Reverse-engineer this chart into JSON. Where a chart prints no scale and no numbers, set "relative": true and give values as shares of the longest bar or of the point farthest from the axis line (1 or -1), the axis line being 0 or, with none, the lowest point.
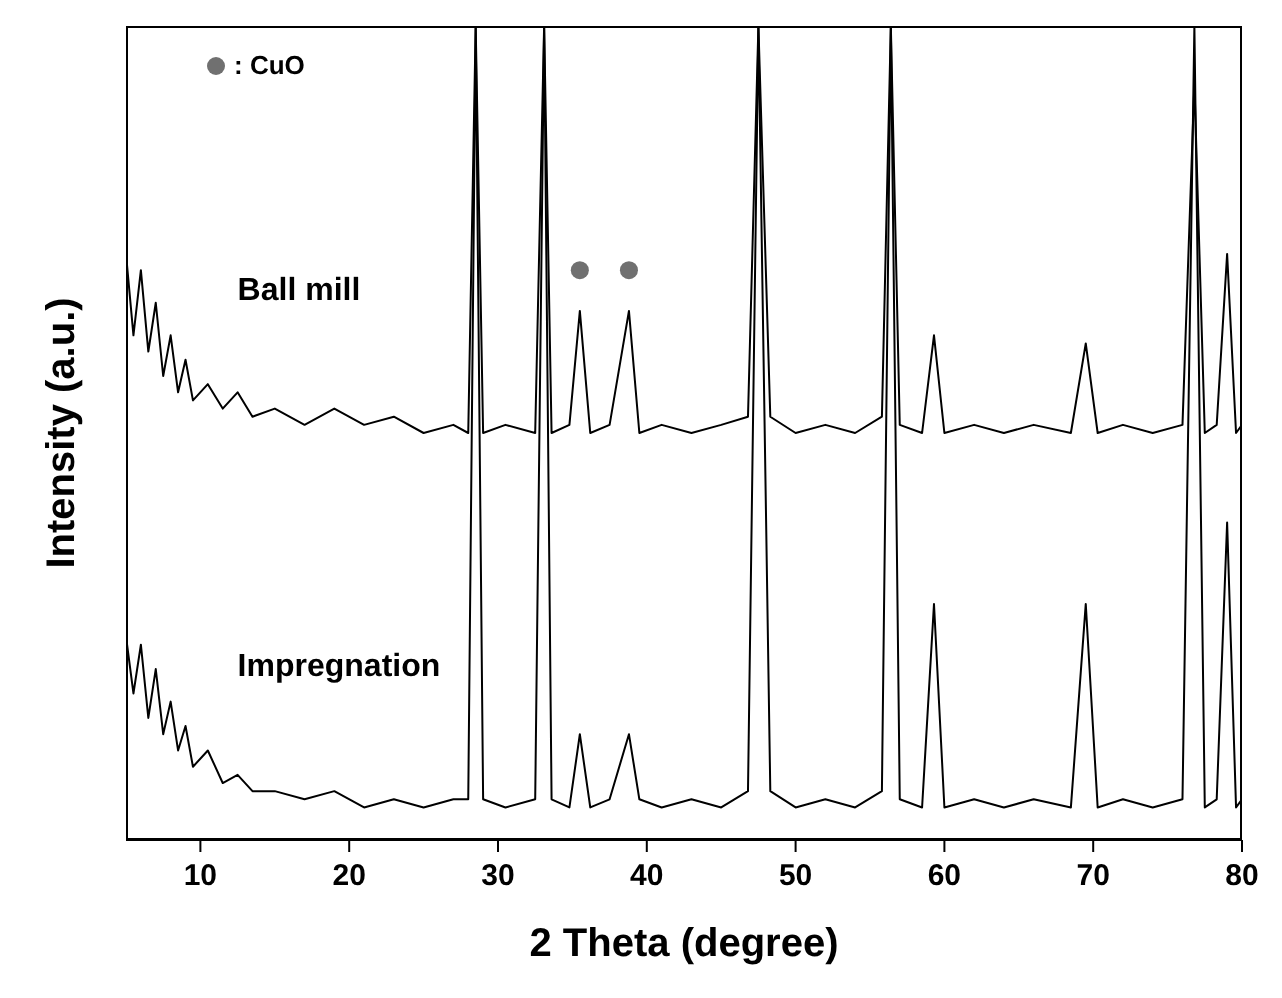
{
  "chart_data": {
    "type": "line",
    "relative": true,
    "xlabel": "2 Theta (degree)",
    "ylabel": "Intensity (a.u.)",
    "xlim": [
      5,
      80
    ],
    "xticks": [
      10,
      20,
      30,
      40,
      50,
      60,
      70,
      80
    ],
    "legend": "top left",
    "line_style": "solid",
    "series": [
      {
        "name": "Ball mill",
        "color": "#000000",
        "marker": "none",
        "x": [
          5.0,
          5.5,
          6.0,
          6.5,
          7.0,
          7.5,
          8.0,
          8.5,
          9.0,
          9.5,
          10.5,
          11.5,
          12.5,
          13.5,
          15,
          17,
          19,
          21,
          23,
          25,
          27,
          28.0,
          28.5,
          29.0,
          30.5,
          32.5,
          33.1,
          33.6,
          34.8,
          35.5,
          36.2,
          37.5,
          38.8,
          39.5,
          41,
          43,
          45,
          46.8,
          47.5,
          48.3,
          50,
          52,
          54,
          55.8,
          56.4,
          57,
          58.5,
          59.3,
          60,
          62,
          64,
          66,
          68.5,
          69.5,
          70.3,
          72,
          74,
          76,
          76.8,
          77.5,
          78.3,
          79,
          79.6,
          80
        ],
        "values": [
          0.72,
          0.62,
          0.7,
          0.6,
          0.66,
          0.57,
          0.62,
          0.55,
          0.59,
          0.54,
          0.56,
          0.53,
          0.55,
          0.52,
          0.53,
          0.51,
          0.53,
          0.51,
          0.52,
          0.5,
          0.51,
          0.5,
          1,
          0.5,
          0.51,
          0.5,
          1,
          0.5,
          0.51,
          0.65,
          0.5,
          0.51,
          0.65,
          0.5,
          0.51,
          0.5,
          0.51,
          0.52,
          1,
          0.52,
          0.5,
          0.51,
          0.5,
          0.52,
          1,
          0.51,
          0.5,
          0.62,
          0.5,
          0.51,
          0.5,
          0.51,
          0.5,
          0.61,
          0.5,
          0.51,
          0.5,
          0.51,
          0.93,
          0.5,
          0.51,
          0.72,
          0.5,
          0.51
        ]
      },
      {
        "name": "Impregnation",
        "color": "#000000",
        "marker": "none",
        "x": [
          5.0,
          5.5,
          6.0,
          6.5,
          7.0,
          7.5,
          8.0,
          8.5,
          9.0,
          9.5,
          10.5,
          11.5,
          12.5,
          13.5,
          15,
          17,
          19,
          21,
          23,
          25,
          27,
          28.0,
          28.5,
          29.0,
          30.5,
          32.5,
          33.1,
          33.6,
          34.8,
          35.5,
          36.2,
          37.5,
          38.8,
          39.5,
          41,
          43,
          45,
          46.8,
          47.5,
          48.3,
          50,
          52,
          54,
          55.8,
          56.4,
          57,
          58.5,
          59.3,
          60,
          62,
          64,
          66,
          68.5,
          69.5,
          70.3,
          72,
          74,
          76,
          76.8,
          77.5,
          78.3,
          79,
          79.6,
          80
        ],
        "values": [
          0.25,
          0.18,
          0.24,
          0.15,
          0.21,
          0.13,
          0.17,
          0.11,
          0.14,
          0.09,
          0.11,
          0.07,
          0.08,
          0.06,
          0.06,
          0.05,
          0.06,
          0.04,
          0.05,
          0.04,
          0.05,
          0.05,
          1,
          0.05,
          0.04,
          0.05,
          1,
          0.05,
          0.04,
          0.13,
          0.04,
          0.05,
          0.13,
          0.05,
          0.04,
          0.05,
          0.04,
          0.06,
          1,
          0.06,
          0.04,
          0.05,
          0.04,
          0.06,
          1,
          0.05,
          0.04,
          0.29,
          0.04,
          0.05,
          0.04,
          0.05,
          0.04,
          0.29,
          0.04,
          0.05,
          0.04,
          0.05,
          1,
          0.04,
          0.05,
          0.39,
          0.04,
          0.05
        ]
      },
      {
        "name": ": CuO",
        "type": "scatter",
        "color": "#707070",
        "marker": "circle",
        "x": [
          35.5,
          38.8
        ],
        "values": [
          0.7,
          0.7
        ]
      }
    ]
  }
}
